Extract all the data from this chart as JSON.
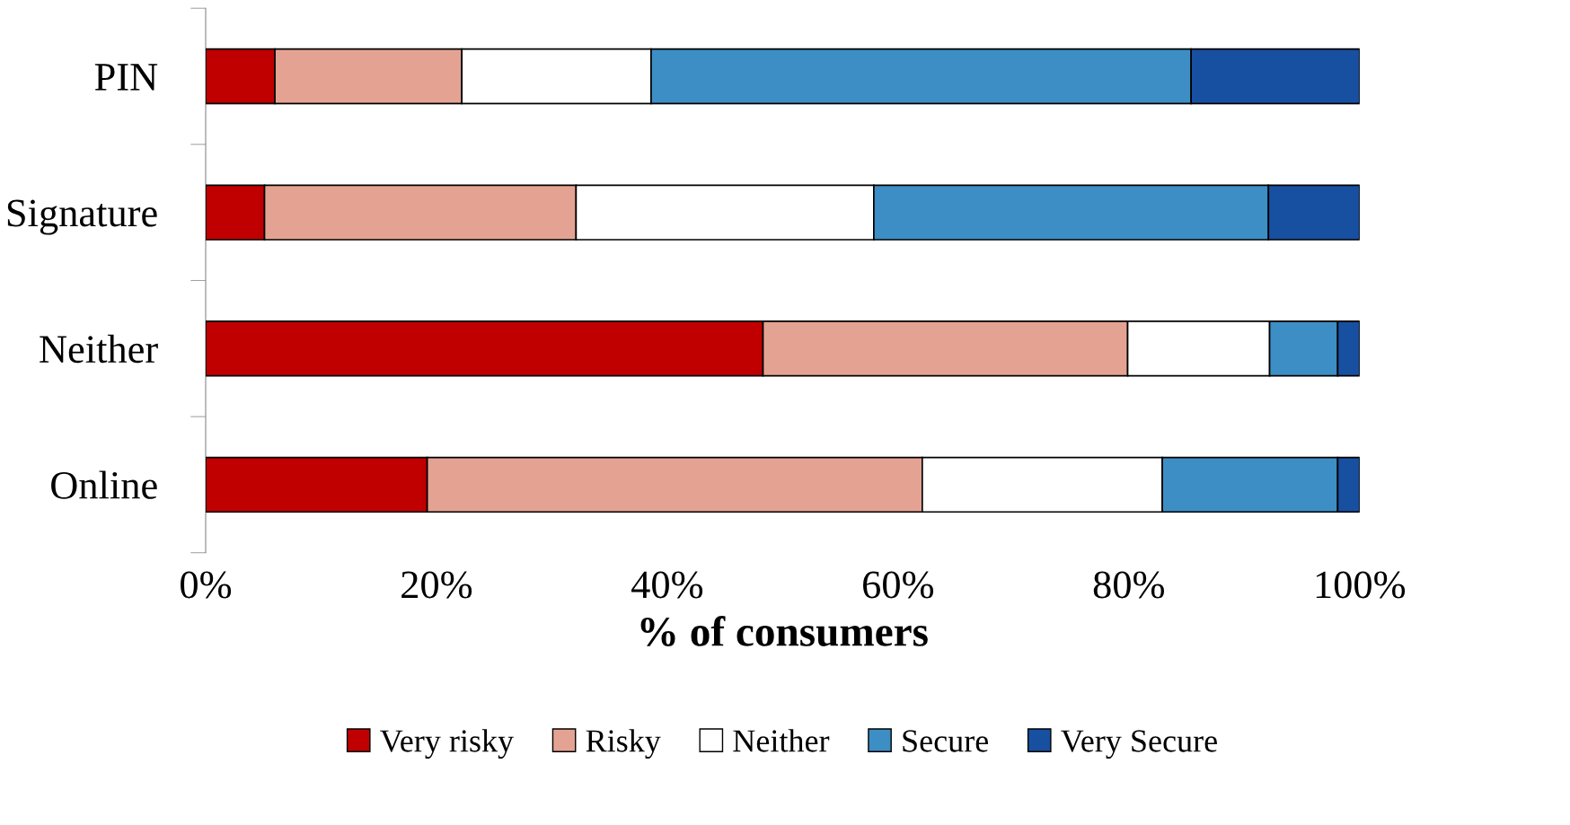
{
  "chart_data": {
    "type": "bar",
    "orientation": "horizontal",
    "stacked": true,
    "categories": [
      "PIN",
      "Signature",
      "Neither",
      "Online"
    ],
    "xlabel": "% of consumers",
    "xlim": [
      0,
      100
    ],
    "xticks": [
      {
        "value": 0,
        "label": "0%"
      },
      {
        "value": 20,
        "label": "20%"
      },
      {
        "value": 40,
        "label": "40%"
      },
      {
        "value": 60,
        "label": "60%"
      },
      {
        "value": 80,
        "label": "80%"
      },
      {
        "value": 100,
        "label": "100%"
      }
    ],
    "legend": "bottom",
    "grid": false,
    "series": [
      {
        "name": "Very risky",
        "color": "#c00000",
        "values": [
          6.0,
          5.1,
          48.3,
          19.2
        ]
      },
      {
        "name": "Risky",
        "color": "#e4a392",
        "values": [
          16.2,
          27.0,
          31.6,
          42.9
        ]
      },
      {
        "name": "Neither",
        "color": "#ffffff",
        "values": [
          16.4,
          25.8,
          12.3,
          20.8
        ]
      },
      {
        "name": "Secure",
        "color": "#3d8ec5",
        "values": [
          46.8,
          34.2,
          5.9,
          15.2
        ]
      },
      {
        "name": "Very Secure",
        "color": "#1750a0",
        "values": [
          14.6,
          7.9,
          1.9,
          1.9
        ]
      }
    ]
  }
}
